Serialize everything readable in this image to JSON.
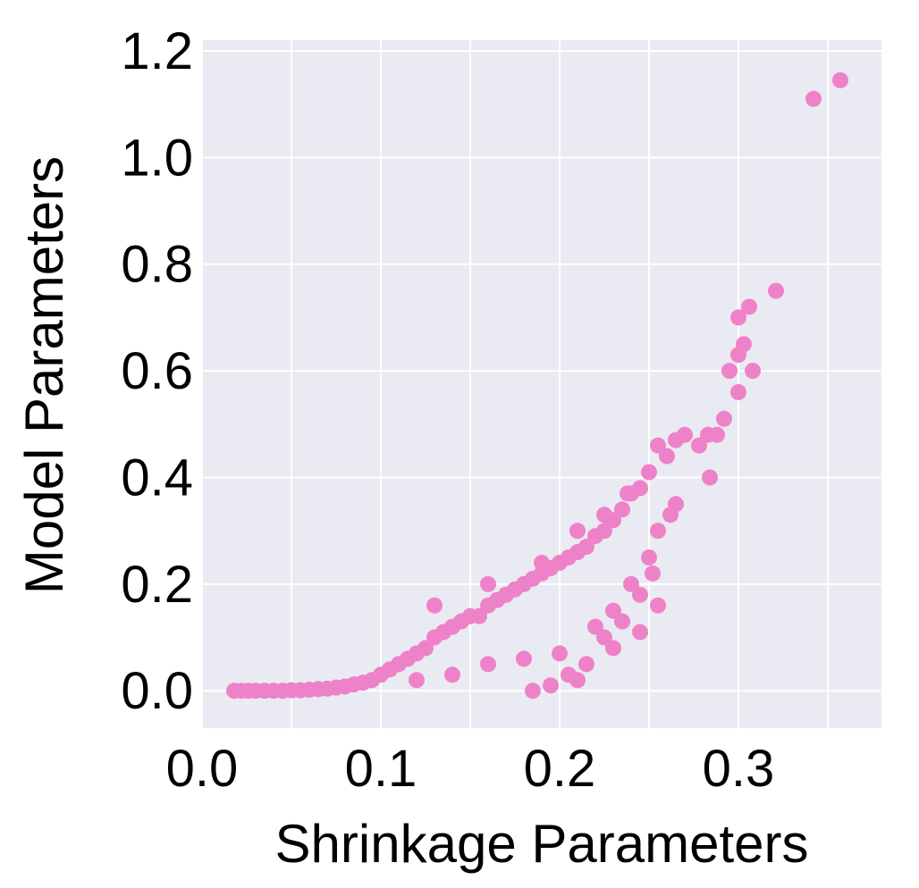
{
  "chart_data": {
    "type": "scatter",
    "xlabel": "Shrinkage Parameters",
    "ylabel": "Model Parameters",
    "xlim": [
      0.0,
      0.38
    ],
    "ylim": [
      -0.07,
      1.22
    ],
    "xticks": [
      0.0,
      0.1,
      0.2,
      0.3
    ],
    "yticks": [
      0.0,
      0.2,
      0.4,
      0.6,
      0.8,
      1.0,
      1.2
    ],
    "xtick_labels": [
      "0.0",
      "0.1",
      "0.2",
      "0.3"
    ],
    "ytick_labels": [
      "0.0",
      "0.2",
      "0.4",
      "0.6",
      "0.8",
      "1.0",
      "1.2"
    ],
    "grid": true,
    "legend": "none",
    "colors": {
      "background": "#eaeaf2",
      "grid": "#ffffff",
      "points": "#ee82c8"
    },
    "series": [
      {
        "points": [
          [
            0.018,
            0.0
          ],
          [
            0.022,
            0.0
          ],
          [
            0.026,
            0.0
          ],
          [
            0.03,
            0.0
          ],
          [
            0.035,
            0.0
          ],
          [
            0.04,
            0.0
          ],
          [
            0.045,
            0.0
          ],
          [
            0.05,
            0.001
          ],
          [
            0.055,
            0.001
          ],
          [
            0.06,
            0.002
          ],
          [
            0.065,
            0.003
          ],
          [
            0.07,
            0.004
          ],
          [
            0.075,
            0.006
          ],
          [
            0.08,
            0.008
          ],
          [
            0.085,
            0.012
          ],
          [
            0.09,
            0.015
          ],
          [
            0.095,
            0.02
          ],
          [
            0.1,
            0.03
          ],
          [
            0.105,
            0.04
          ],
          [
            0.11,
            0.05
          ],
          [
            0.115,
            0.06
          ],
          [
            0.12,
            0.07
          ],
          [
            0.125,
            0.08
          ],
          [
            0.13,
            0.1
          ],
          [
            0.135,
            0.11
          ],
          [
            0.14,
            0.12
          ],
          [
            0.145,
            0.13
          ],
          [
            0.15,
            0.14
          ],
          [
            0.155,
            0.14
          ],
          [
            0.16,
            0.16
          ],
          [
            0.165,
            0.17
          ],
          [
            0.17,
            0.18
          ],
          [
            0.175,
            0.19
          ],
          [
            0.18,
            0.2
          ],
          [
            0.185,
            0.21
          ],
          [
            0.19,
            0.22
          ],
          [
            0.195,
            0.23
          ],
          [
            0.2,
            0.24
          ],
          [
            0.205,
            0.25
          ],
          [
            0.21,
            0.26
          ],
          [
            0.215,
            0.27
          ],
          [
            0.22,
            0.29
          ],
          [
            0.225,
            0.3
          ],
          [
            0.23,
            0.32
          ],
          [
            0.235,
            0.34
          ],
          [
            0.24,
            0.37
          ],
          [
            0.245,
            0.38
          ],
          [
            0.25,
            0.41
          ],
          [
            0.255,
            0.46
          ],
          [
            0.26,
            0.44
          ],
          [
            0.265,
            0.47
          ],
          [
            0.27,
            0.48
          ],
          [
            0.278,
            0.46
          ],
          [
            0.283,
            0.48
          ],
          [
            0.288,
            0.48
          ],
          [
            0.292,
            0.51
          ],
          [
            0.295,
            0.6
          ],
          [
            0.3,
            0.63
          ],
          [
            0.303,
            0.65
          ],
          [
            0.3,
            0.7
          ],
          [
            0.306,
            0.72
          ],
          [
            0.308,
            0.6
          ],
          [
            0.3,
            0.56
          ],
          [
            0.284,
            0.4
          ],
          [
            0.321,
            0.75
          ],
          [
            0.342,
            1.11
          ],
          [
            0.357,
            1.145
          ],
          [
            0.13,
            0.16
          ],
          [
            0.16,
            0.2
          ],
          [
            0.17,
            0.18
          ],
          [
            0.19,
            0.24
          ],
          [
            0.21,
            0.3
          ],
          [
            0.225,
            0.33
          ],
          [
            0.238,
            0.37
          ],
          [
            0.12,
            0.02
          ],
          [
            0.14,
            0.03
          ],
          [
            0.16,
            0.05
          ],
          [
            0.18,
            0.06
          ],
          [
            0.2,
            0.07
          ],
          [
            0.21,
            0.02
          ],
          [
            0.225,
            0.1
          ],
          [
            0.235,
            0.13
          ],
          [
            0.245,
            0.18
          ],
          [
            0.252,
            0.22
          ],
          [
            0.255,
            0.3
          ],
          [
            0.262,
            0.33
          ],
          [
            0.265,
            0.35
          ],
          [
            0.25,
            0.25
          ],
          [
            0.24,
            0.2
          ],
          [
            0.23,
            0.15
          ],
          [
            0.22,
            0.12
          ],
          [
            0.255,
            0.16
          ],
          [
            0.245,
            0.11
          ],
          [
            0.23,
            0.08
          ],
          [
            0.215,
            0.05
          ],
          [
            0.205,
            0.03
          ],
          [
            0.195,
            0.01
          ],
          [
            0.185,
            0.0
          ]
        ]
      }
    ]
  }
}
